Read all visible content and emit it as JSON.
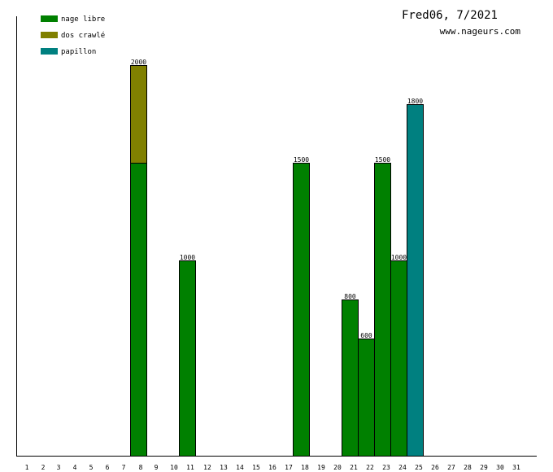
{
  "header": {
    "title": "Fred06, 7/2021",
    "site": "www.nageurs.com"
  },
  "chart_data": {
    "type": "bar",
    "stacked": true,
    "categories": [
      "1",
      "2",
      "3",
      "4",
      "5",
      "6",
      "7",
      "8",
      "9",
      "10",
      "11",
      "12",
      "13",
      "14",
      "15",
      "16",
      "17",
      "18",
      "19",
      "20",
      "21",
      "22",
      "23",
      "24",
      "25",
      "26",
      "27",
      "28",
      "29",
      "30",
      "31"
    ],
    "series": [
      {
        "name": "nage libre",
        "color": "#008000",
        "values": [
          0,
          0,
          0,
          0,
          0,
          0,
          0,
          1500,
          0,
          0,
          1000,
          0,
          0,
          0,
          0,
          0,
          0,
          1500,
          0,
          0,
          800,
          600,
          1500,
          1000,
          0,
          0,
          0,
          0,
          0,
          0,
          0
        ]
      },
      {
        "name": "dos crawlé",
        "color": "#808000",
        "values": [
          0,
          0,
          0,
          0,
          0,
          0,
          0,
          500,
          0,
          0,
          0,
          0,
          0,
          0,
          0,
          0,
          0,
          0,
          0,
          0,
          0,
          0,
          0,
          0,
          0,
          0,
          0,
          0,
          0,
          0,
          0
        ]
      },
      {
        "name": "papillon",
        "color": "#008080",
        "values": [
          0,
          0,
          0,
          0,
          0,
          0,
          0,
          0,
          0,
          0,
          0,
          0,
          0,
          0,
          0,
          0,
          0,
          0,
          0,
          0,
          0,
          0,
          0,
          0,
          1800,
          0,
          0,
          0,
          0,
          0,
          0
        ]
      }
    ],
    "totals": [
      null,
      null,
      null,
      null,
      null,
      null,
      null,
      2000,
      null,
      null,
      1000,
      null,
      null,
      null,
      null,
      null,
      null,
      1500,
      null,
      null,
      800,
      600,
      1500,
      1000,
      1800,
      null,
      null,
      null,
      null,
      null,
      null
    ],
    "ylim": [
      0,
      2000
    ],
    "grid": false,
    "legend_position": "top-left"
  }
}
